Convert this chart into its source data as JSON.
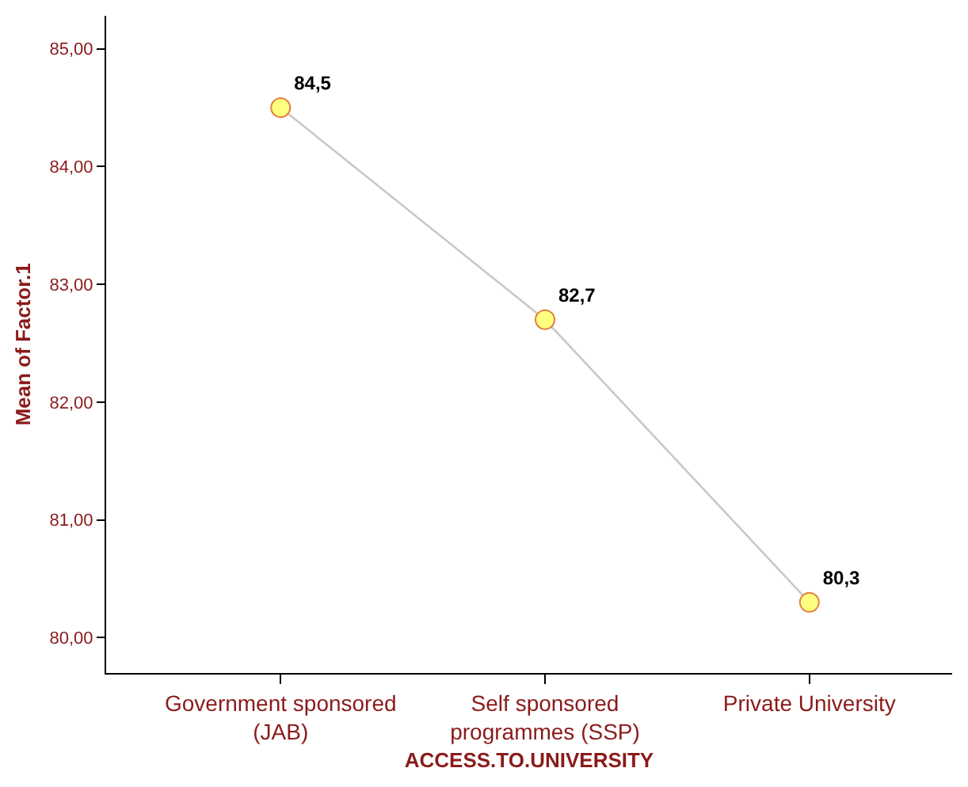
{
  "chart_data": {
    "type": "line",
    "xlabel": "ACCESS.TO.UNIVERSITY",
    "ylabel": "Mean of Factor.1",
    "categories": [
      "Government sponsored\n(JAB)",
      "Self sponsored\nprogrammes (SSP)",
      "Private University"
    ],
    "series": [
      {
        "color": "#c8c8c8",
        "colors": [
          "#ffff80",
          "#ffff80",
          "#ffff80"
        ],
        "values": [
          84.5,
          82.7,
          80.3
        ],
        "value_labels": [
          "84,5",
          "82,7",
          "80,3"
        ]
      }
    ],
    "marker": "circle",
    "grid": false,
    "ylim": [
      79.7,
      85.28
    ],
    "yticks": [
      {
        "value": 80,
        "label": "80,00"
      },
      {
        "value": 81,
        "label": "81,00"
      },
      {
        "value": 82,
        "label": "82,00"
      },
      {
        "value": 83,
        "label": "83,00"
      },
      {
        "value": 84,
        "label": "84,00"
      },
      {
        "value": 85,
        "label": "85,00"
      }
    ]
  }
}
